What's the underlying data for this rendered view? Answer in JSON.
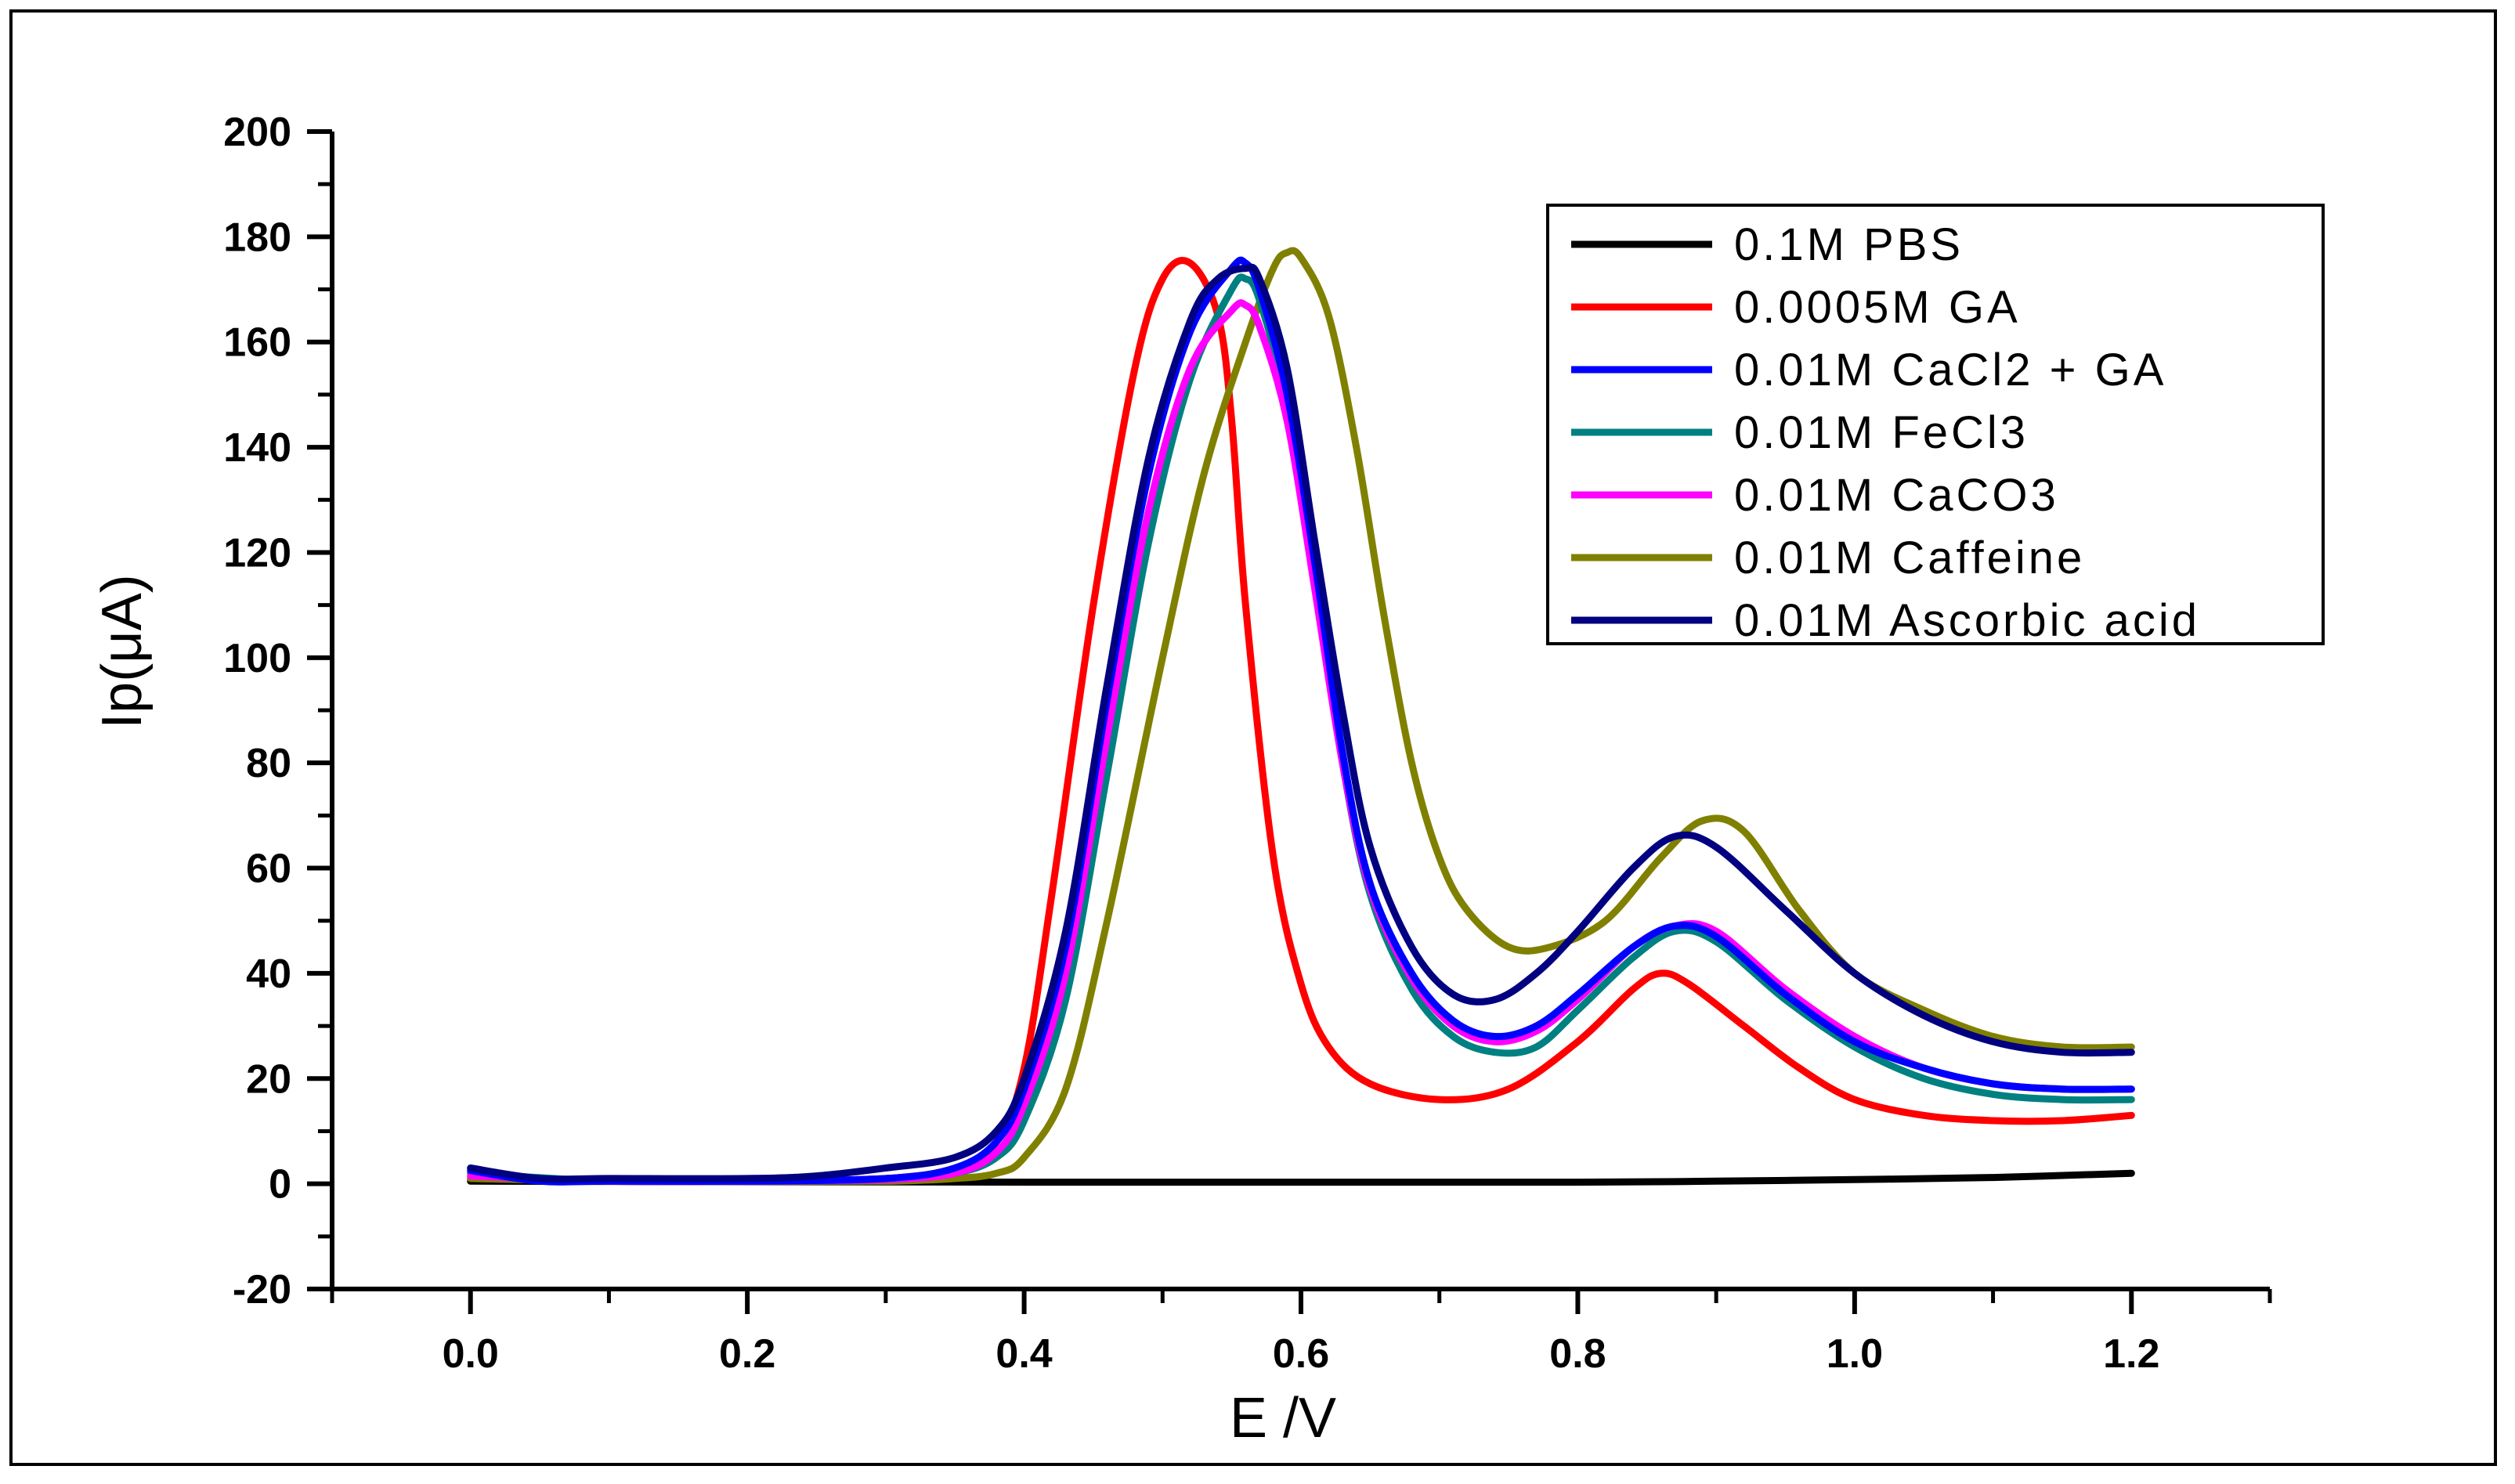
{
  "chart_data": {
    "type": "line",
    "title": "",
    "xlabel": "E  /V",
    "ylabel": "Ip(μA)",
    "xlim": [
      -0.1,
      1.3
    ],
    "ylim": [
      -20,
      200
    ],
    "x_ticks": [
      "0.0",
      "0.2",
      "0.4",
      "0.6",
      "0.8",
      "1.0",
      "1.2"
    ],
    "y_ticks": [
      "-20",
      "0",
      "20",
      "40",
      "60",
      "80",
      "100",
      "120",
      "140",
      "160",
      "180",
      "200"
    ],
    "legend_position": "top-right",
    "series": [
      {
        "name": "0.1M PBS",
        "color": "#000000",
        "points": [
          [
            0.0,
            0.5
          ],
          [
            0.2,
            0.4
          ],
          [
            0.4,
            0.3
          ],
          [
            0.6,
            0.3
          ],
          [
            0.8,
            0.3
          ],
          [
            0.9,
            0.5
          ],
          [
            1.0,
            0.8
          ],
          [
            1.1,
            1.2
          ],
          [
            1.2,
            2.0
          ]
        ]
      },
      {
        "name": "0.0005M GA",
        "color": "#ff0000",
        "points": [
          [
            0.0,
            1.0
          ],
          [
            0.1,
            0.5
          ],
          [
            0.2,
            0.5
          ],
          [
            0.3,
            1.0
          ],
          [
            0.35,
            3
          ],
          [
            0.38,
            8
          ],
          [
            0.4,
            22
          ],
          [
            0.42,
            55
          ],
          [
            0.45,
            110
          ],
          [
            0.48,
            155
          ],
          [
            0.5,
            172
          ],
          [
            0.52,
            175
          ],
          [
            0.54,
            165
          ],
          [
            0.55,
            145
          ],
          [
            0.56,
            110
          ],
          [
            0.58,
            62
          ],
          [
            0.6,
            38
          ],
          [
            0.62,
            26
          ],
          [
            0.65,
            19
          ],
          [
            0.7,
            16
          ],
          [
            0.75,
            18
          ],
          [
            0.8,
            27
          ],
          [
            0.84,
            37
          ],
          [
            0.86,
            40
          ],
          [
            0.88,
            38
          ],
          [
            0.92,
            30
          ],
          [
            0.96,
            22
          ],
          [
            1.0,
            16
          ],
          [
            1.05,
            13
          ],
          [
            1.1,
            12
          ],
          [
            1.15,
            12
          ],
          [
            1.2,
            13
          ]
        ]
      },
      {
        "name": "0.01M CaCl2 + GA",
        "color": "#0000ff",
        "points": [
          [
            0.0,
            2.5
          ],
          [
            0.05,
            0.5
          ],
          [
            0.1,
            0.5
          ],
          [
            0.2,
            0.5
          ],
          [
            0.3,
            1.0
          ],
          [
            0.35,
            3
          ],
          [
            0.38,
            8
          ],
          [
            0.4,
            18
          ],
          [
            0.43,
            45
          ],
          [
            0.46,
            92
          ],
          [
            0.49,
            135
          ],
          [
            0.52,
            162
          ],
          [
            0.55,
            174
          ],
          [
            0.56,
            175
          ],
          [
            0.57,
            170
          ],
          [
            0.59,
            150
          ],
          [
            0.61,
            118
          ],
          [
            0.63,
            82
          ],
          [
            0.65,
            57
          ],
          [
            0.68,
            40
          ],
          [
            0.71,
            31
          ],
          [
            0.74,
            28
          ],
          [
            0.77,
            30
          ],
          [
            0.8,
            36
          ],
          [
            0.84,
            45
          ],
          [
            0.87,
            49
          ],
          [
            0.9,
            47
          ],
          [
            0.95,
            36
          ],
          [
            1.0,
            27
          ],
          [
            1.05,
            22
          ],
          [
            1.1,
            19
          ],
          [
            1.15,
            18
          ],
          [
            1.2,
            18
          ]
        ]
      },
      {
        "name": "0.01M FeCl3",
        "color": "#008080",
        "points": [
          [
            0.0,
            2.0
          ],
          [
            0.1,
            0.5
          ],
          [
            0.2,
            0.5
          ],
          [
            0.3,
            0.8
          ],
          [
            0.35,
            2
          ],
          [
            0.38,
            5
          ],
          [
            0.4,
            12
          ],
          [
            0.43,
            35
          ],
          [
            0.46,
            78
          ],
          [
            0.49,
            122
          ],
          [
            0.52,
            153
          ],
          [
            0.55,
            170
          ],
          [
            0.56,
            172
          ],
          [
            0.57,
            168
          ],
          [
            0.59,
            148
          ],
          [
            0.61,
            115
          ],
          [
            0.63,
            80
          ],
          [
            0.65,
            55
          ],
          [
            0.68,
            37
          ],
          [
            0.71,
            28
          ],
          [
            0.74,
            25
          ],
          [
            0.77,
            26
          ],
          [
            0.8,
            33
          ],
          [
            0.84,
            43
          ],
          [
            0.87,
            48
          ],
          [
            0.9,
            46
          ],
          [
            0.95,
            35
          ],
          [
            1.0,
            26
          ],
          [
            1.05,
            20
          ],
          [
            1.1,
            17
          ],
          [
            1.15,
            16
          ],
          [
            1.2,
            16
          ]
        ]
      },
      {
        "name": "0.01M CaCO3",
        "color": "#ff00ff",
        "points": [
          [
            0.0,
            1.5
          ],
          [
            0.1,
            0.5
          ],
          [
            0.2,
            0.5
          ],
          [
            0.3,
            0.8
          ],
          [
            0.35,
            2
          ],
          [
            0.38,
            6
          ],
          [
            0.4,
            15
          ],
          [
            0.43,
            40
          ],
          [
            0.46,
            85
          ],
          [
            0.49,
            128
          ],
          [
            0.52,
            155
          ],
          [
            0.55,
            166
          ],
          [
            0.56,
            167
          ],
          [
            0.57,
            163
          ],
          [
            0.59,
            145
          ],
          [
            0.61,
            113
          ],
          [
            0.63,
            80
          ],
          [
            0.65,
            56
          ],
          [
            0.68,
            39
          ],
          [
            0.71,
            30
          ],
          [
            0.74,
            27
          ],
          [
            0.77,
            29
          ],
          [
            0.8,
            35
          ],
          [
            0.84,
            45
          ],
          [
            0.87,
            49
          ],
          [
            0.9,
            48
          ],
          [
            0.95,
            37
          ],
          [
            1.0,
            28
          ],
          [
            1.05,
            22
          ],
          [
            1.1,
            19
          ],
          [
            1.15,
            18
          ],
          [
            1.2,
            18
          ]
        ]
      },
      {
        "name": "0.01M Caffeine",
        "color": "#808000",
        "points": [
          [
            0.0,
            1.0
          ],
          [
            0.1,
            0.5
          ],
          [
            0.2,
            0.5
          ],
          [
            0.3,
            0.5
          ],
          [
            0.35,
            1
          ],
          [
            0.38,
            2
          ],
          [
            0.4,
            5
          ],
          [
            0.43,
            18
          ],
          [
            0.46,
            50
          ],
          [
            0.5,
            100
          ],
          [
            0.53,
            135
          ],
          [
            0.56,
            160
          ],
          [
            0.58,
            174
          ],
          [
            0.59,
            177
          ],
          [
            0.6,
            176
          ],
          [
            0.62,
            165
          ],
          [
            0.64,
            140
          ],
          [
            0.66,
            108
          ],
          [
            0.68,
            80
          ],
          [
            0.7,
            62
          ],
          [
            0.72,
            52
          ],
          [
            0.75,
            45
          ],
          [
            0.78,
            45
          ],
          [
            0.82,
            50
          ],
          [
            0.86,
            62
          ],
          [
            0.89,
            69
          ],
          [
            0.92,
            67
          ],
          [
            0.96,
            52
          ],
          [
            1.0,
            40
          ],
          [
            1.05,
            33
          ],
          [
            1.1,
            28
          ],
          [
            1.15,
            26
          ],
          [
            1.2,
            26
          ]
        ]
      },
      {
        "name": "0.01M Ascorbic acid",
        "color": "#000080",
        "points": [
          [
            0.0,
            3.0
          ],
          [
            0.05,
            1.0
          ],
          [
            0.1,
            1.0
          ],
          [
            0.2,
            1.0
          ],
          [
            0.25,
            1.5
          ],
          [
            0.3,
            3
          ],
          [
            0.35,
            5
          ],
          [
            0.38,
            10
          ],
          [
            0.4,
            20
          ],
          [
            0.43,
            48
          ],
          [
            0.46,
            95
          ],
          [
            0.49,
            138
          ],
          [
            0.52,
            164
          ],
          [
            0.54,
            172
          ],
          [
            0.56,
            174
          ],
          [
            0.57,
            172
          ],
          [
            0.59,
            155
          ],
          [
            0.61,
            122
          ],
          [
            0.63,
            90
          ],
          [
            0.65,
            64
          ],
          [
            0.68,
            45
          ],
          [
            0.71,
            36
          ],
          [
            0.74,
            35
          ],
          [
            0.77,
            40
          ],
          [
            0.8,
            48
          ],
          [
            0.84,
            60
          ],
          [
            0.87,
            66
          ],
          [
            0.9,
            64
          ],
          [
            0.95,
            52
          ],
          [
            1.0,
            40
          ],
          [
            1.05,
            32
          ],
          [
            1.1,
            27
          ],
          [
            1.15,
            25
          ],
          [
            1.2,
            25
          ]
        ]
      }
    ]
  }
}
